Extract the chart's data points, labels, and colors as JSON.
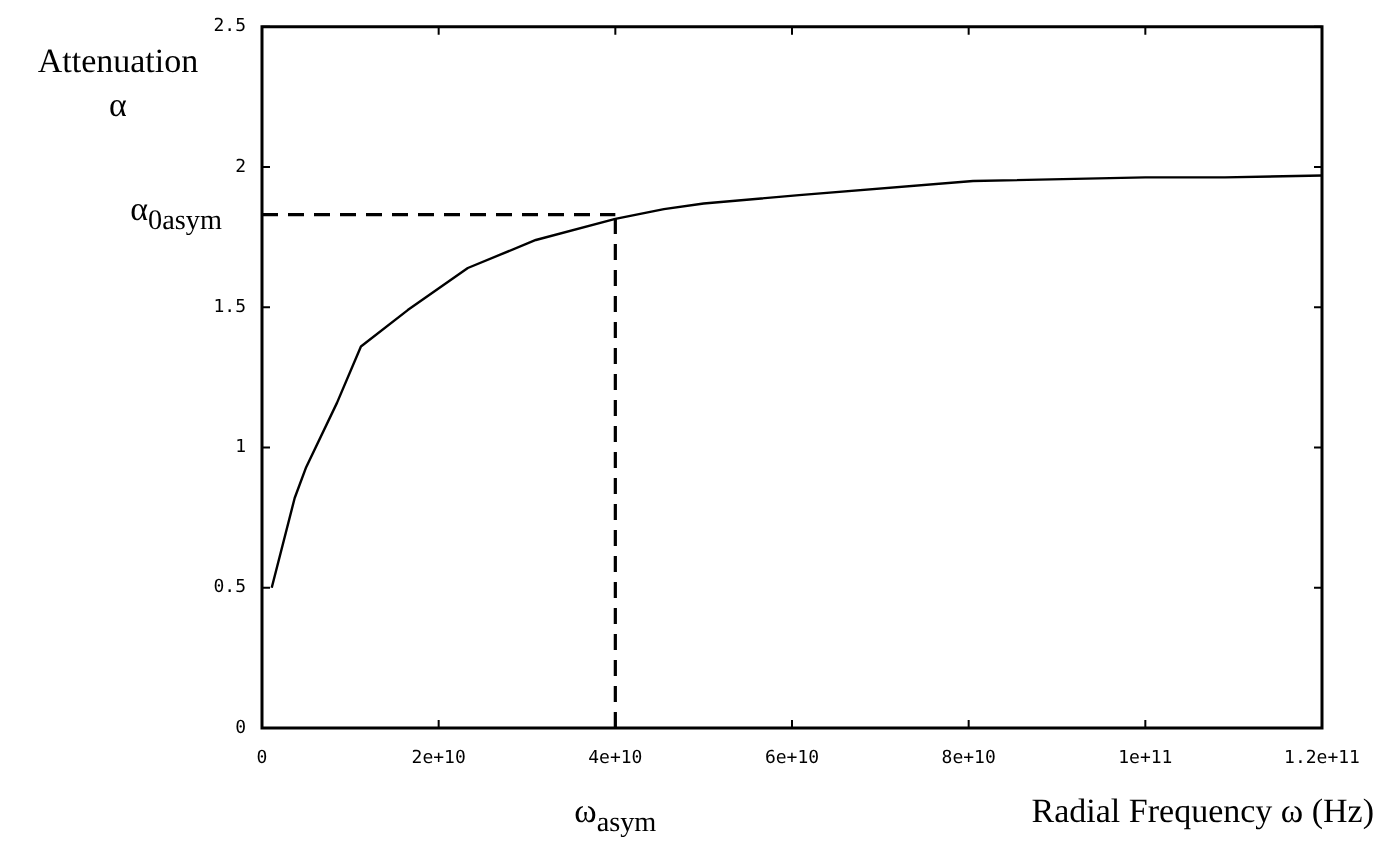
{
  "chart_data": {
    "type": "line",
    "xlabel": "Radial Frequency ω (Hz)",
    "ylabel": "Attenuation α",
    "x": [
      1100000000.0,
      3700000000.0,
      5000000000.0,
      8500000000.0,
      11200000000.0,
      16500000000.0,
      23300000000.0,
      31000000000.0,
      40000000000.0,
      45500000000.0,
      50000000000.0,
      60800000000.0,
      80500000000.0,
      100000000000.0,
      109000000000.0,
      120000000000.0
    ],
    "series": [
      {
        "color": "#000000",
        "values": [
          0.5,
          0.82,
          0.93,
          1.16,
          1.36,
          1.49,
          1.64,
          1.74,
          1.815,
          1.85,
          1.87,
          1.9,
          1.95,
          1.963,
          1.963,
          1.97
        ]
      }
    ],
    "xlim": [
      0,
      120000000000.0
    ],
    "xticks": [
      0,
      {
        "value": 20000000000.0,
        "label": "2e+10"
      },
      {
        "value": 40000000000.0,
        "label": "4e+10"
      },
      {
        "value": 60000000000.0,
        "label": "6e+10"
      },
      {
        "value": 80000000000.0,
        "label": "8e+10"
      },
      {
        "value": 100000000000.0,
        "label": "1e+11"
      },
      {
        "value": 120000000000.0,
        "label": "1.2e+11"
      }
    ],
    "ylim": [
      0,
      2.5
    ],
    "yticks": [
      0,
      0.5,
      1,
      1.5,
      2,
      2.5
    ],
    "ref_lines": [
      {
        "axis": "y",
        "value": 1.83,
        "label": "α$_{0asym}$",
        "color": "#000000",
        "line_style": "dashed"
      },
      {
        "axis": "x",
        "value": 40000000000.0,
        "label": "ω$_{asym}$",
        "color": "#000000",
        "line_style": "dashed"
      }
    ],
    "grid": false,
    "legend": false,
    "marker": "none",
    "line_style": "solid"
  }
}
